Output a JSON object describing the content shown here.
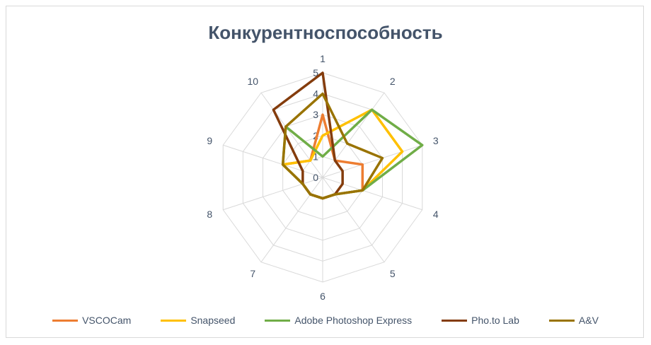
{
  "chart_data": {
    "type": "radar",
    "title": "Конкурентноспособность",
    "categories": [
      "1",
      "2",
      "3",
      "4",
      "5",
      "6",
      "7",
      "8",
      "9",
      "10"
    ],
    "rlim": [
      0,
      5
    ],
    "ticks": [
      "0",
      "1",
      "2",
      "3",
      "4",
      "5"
    ],
    "grid": true,
    "legend_position": "bottom",
    "series": [
      {
        "name": "VSCOCam",
        "color": "#ED7D31",
        "values": [
          3,
          1,
          2,
          2,
          1,
          1,
          1,
          1,
          2,
          1
        ]
      },
      {
        "name": "Snapseed",
        "color": "#FFC000",
        "values": [
          2,
          4,
          4,
          2,
          1,
          1,
          1,
          1,
          2,
          1
        ]
      },
      {
        "name": "Adobe Photoshop Express",
        "color": "#70AD47",
        "values": [
          1,
          4,
          5,
          2,
          1,
          1,
          1,
          1,
          2,
          3
        ]
      },
      {
        "name": "Pho.to Lab",
        "color": "#843C0C",
        "values": [
          5,
          1,
          1,
          1,
          1,
          1,
          1,
          1,
          1,
          4
        ]
      },
      {
        "name": "A&V",
        "color": "#997300",
        "values": [
          4,
          2,
          3,
          2,
          1,
          1,
          1,
          1,
          2,
          3
        ]
      }
    ]
  }
}
